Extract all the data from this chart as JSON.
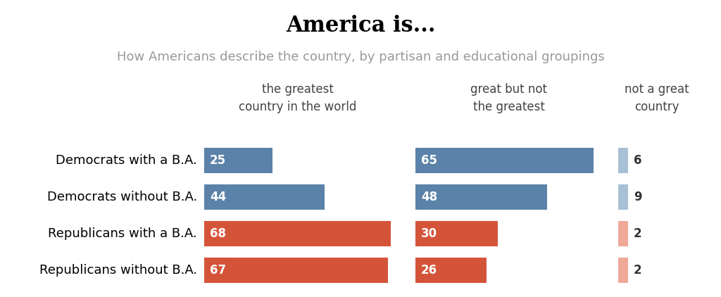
{
  "title": "America is...",
  "subtitle": "How Americans describe the country, by partisan and educational groupings",
  "col_headers": [
    "the greatest\ncountry in the world",
    "great but not\nthe greatest",
    "not a great\ncountry"
  ],
  "groups": [
    "Democrats with a B.A.",
    "Democrats without B.A.",
    "Republicans with a B.A.",
    "Republicans without B.A."
  ],
  "values": [
    [
      25,
      65,
      6
    ],
    [
      44,
      48,
      9
    ],
    [
      68,
      30,
      2
    ],
    [
      67,
      26,
      2
    ]
  ],
  "bar_colors": [
    [
      "#5b82a8",
      "#5b82a8",
      "#a8c0d6"
    ],
    [
      "#5b82a8",
      "#5b82a8",
      "#a8c0d6"
    ],
    [
      "#d4543a",
      "#d4543a",
      "#f0a898"
    ],
    [
      "#d4543a",
      "#d4543a",
      "#f0a898"
    ]
  ],
  "background_color": "#ffffff",
  "title_fontsize": 22,
  "subtitle_fontsize": 13,
  "label_fontsize": 13,
  "value_fontsize": 12,
  "header_fontsize": 12,
  "fig_width": 10.24,
  "fig_height": 4.22,
  "dpi": 100
}
